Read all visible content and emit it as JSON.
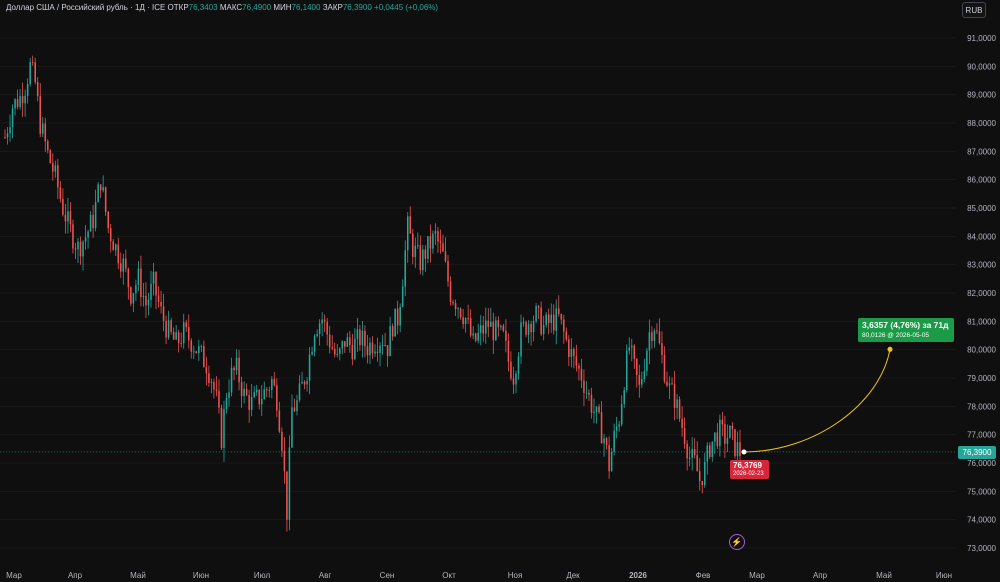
{
  "header": {
    "instrument": "Доллар США / Российский рубль · 1Д · ICE",
    "open_label": "ОТКР",
    "open_value": "76,3403",
    "high_label": "МАКС",
    "high_value": "76,4900",
    "low_label": "МИН",
    "low_value": "76,1400",
    "close_label": "ЗАКР",
    "close_value": "76,3900",
    "change": "+0,0445 (+0,06%)"
  },
  "currency_button": "RUB",
  "current_price_tag": "76,3900",
  "projection": {
    "line1": "3,6357 (4,76%) за 71д",
    "line2": "80,0126 @ 2026-05-05"
  },
  "last_marker": {
    "price": "76,3769",
    "date": "2026-02-23"
  },
  "colors": {
    "up": "#26a69a",
    "down": "#ef5350",
    "background": "#0f0f0f",
    "projection_line": "#f0c419",
    "projection_box": "#1b9a48",
    "last_box": "#d9253a"
  },
  "icons": [
    "lightning-icon"
  ],
  "chart_data": {
    "type": "candlestick",
    "y_ticks": [
      "91,0000",
      "90,0000",
      "89,0000",
      "88,0000",
      "87,0000",
      "86,0000",
      "85,0000",
      "84,0000",
      "83,0000",
      "82,0000",
      "81,0000",
      "80,0000",
      "79,0000",
      "78,0000",
      "77,0000",
      "76,0000",
      "75,0000",
      "74,0000",
      "73,0000"
    ],
    "x_ticks": [
      "Мар",
      "Апр",
      "Май",
      "Июн",
      "Июл",
      "Авг",
      "Сен",
      "Окт",
      "Ноя",
      "Дек",
      "2026",
      "Фев",
      "Мар",
      "Апр",
      "Май",
      "Июн"
    ],
    "ylim": [
      72.8,
      91.6
    ],
    "current_price": 76.39,
    "close_path": [
      [
        0,
        87.5
      ],
      [
        3,
        88.6
      ],
      [
        6,
        88.9
      ],
      [
        8,
        89.3
      ],
      [
        10,
        90.0
      ],
      [
        12,
        89.4
      ],
      [
        14,
        88.0
      ],
      [
        17,
        86.9
      ],
      [
        20,
        86.1
      ],
      [
        23,
        85.0
      ],
      [
        26,
        84.2
      ],
      [
        29,
        83.6
      ],
      [
        32,
        84.0
      ],
      [
        35,
        84.6
      ],
      [
        38,
        86.0
      ],
      [
        41,
        84.3
      ],
      [
        44,
        83.6
      ],
      [
        47,
        83.0
      ],
      [
        50,
        82.0
      ],
      [
        53,
        82.5
      ],
      [
        56,
        81.6
      ],
      [
        59,
        82.3
      ],
      [
        62,
        81.3
      ],
      [
        65,
        80.6
      ],
      [
        68,
        80.2
      ],
      [
        71,
        80.6
      ],
      [
        74,
        80.3
      ],
      [
        77,
        79.9
      ],
      [
        80,
        79.5
      ],
      [
        82,
        79.0
      ],
      [
        84,
        78.2
      ],
      [
        86,
        76.9
      ],
      [
        88,
        78.5
      ],
      [
        90,
        79.1
      ],
      [
        92,
        79.3
      ],
      [
        95,
        78.4
      ],
      [
        98,
        78.1
      ],
      [
        101,
        78.3
      ],
      [
        104,
        78.6
      ],
      [
        106,
        78.9
      ],
      [
        108,
        78.3
      ],
      [
        110,
        76.8
      ],
      [
        112,
        74.3
      ],
      [
        114,
        77.9
      ],
      [
        116,
        78.1
      ],
      [
        118,
        78.7
      ],
      [
        120,
        79.3
      ],
      [
        123,
        80.8
      ],
      [
        126,
        81.1
      ],
      [
        129,
        80.3
      ],
      [
        132,
        79.6
      ],
      [
        135,
        80.3
      ],
      [
        138,
        80.1
      ],
      [
        141,
        80.4
      ],
      [
        144,
        80.1
      ],
      [
        147,
        80.3
      ],
      [
        150,
        80.4
      ],
      [
        152,
        80.1
      ],
      [
        154,
        80.9
      ],
      [
        156,
        81.1
      ],
      [
        158,
        82.6
      ],
      [
        160,
        84.3
      ],
      [
        162,
        83.6
      ],
      [
        165,
        83.1
      ],
      [
        168,
        83.6
      ],
      [
        171,
        84.0
      ],
      [
        174,
        83.3
      ],
      [
        177,
        82.0
      ],
      [
        180,
        81.6
      ],
      [
        183,
        81.1
      ],
      [
        186,
        80.2
      ],
      [
        189,
        80.6
      ],
      [
        192,
        80.9
      ],
      [
        195,
        80.6
      ],
      [
        198,
        80.4
      ],
      [
        200,
        79.6
      ],
      [
        202,
        79.1
      ],
      [
        205,
        80.6
      ],
      [
        208,
        81.0
      ],
      [
        211,
        81.2
      ],
      [
        214,
        80.8
      ],
      [
        217,
        81.0
      ],
      [
        220,
        81.1
      ],
      [
        223,
        80.3
      ],
      [
        226,
        79.6
      ],
      [
        229,
        79.1
      ],
      [
        232,
        78.3
      ],
      [
        235,
        77.6
      ],
      [
        238,
        76.9
      ],
      [
        240,
        75.9
      ],
      [
        242,
        76.9
      ],
      [
        244,
        77.6
      ],
      [
        246,
        79.0
      ],
      [
        248,
        80.1
      ],
      [
        250,
        79.3
      ],
      [
        252,
        78.6
      ],
      [
        254,
        79.6
      ],
      [
        256,
        80.6
      ],
      [
        258,
        80.9
      ],
      [
        260,
        80.1
      ],
      [
        262,
        79.3
      ],
      [
        264,
        78.6
      ],
      [
        266,
        78.3
      ],
      [
        268,
        77.6
      ],
      [
        270,
        77.0
      ],
      [
        272,
        76.2
      ],
      [
        274,
        76.0
      ],
      [
        276,
        75.4
      ],
      [
        278,
        75.8
      ],
      [
        280,
        76.6
      ],
      [
        282,
        76.9
      ],
      [
        284,
        77.1
      ],
      [
        286,
        76.9
      ],
      [
        288,
        77.0
      ],
      [
        290,
        76.6
      ],
      [
        292,
        76.38
      ]
    ],
    "projection_end": {
      "date": "2026-05-05",
      "price": 80.0126
    }
  }
}
